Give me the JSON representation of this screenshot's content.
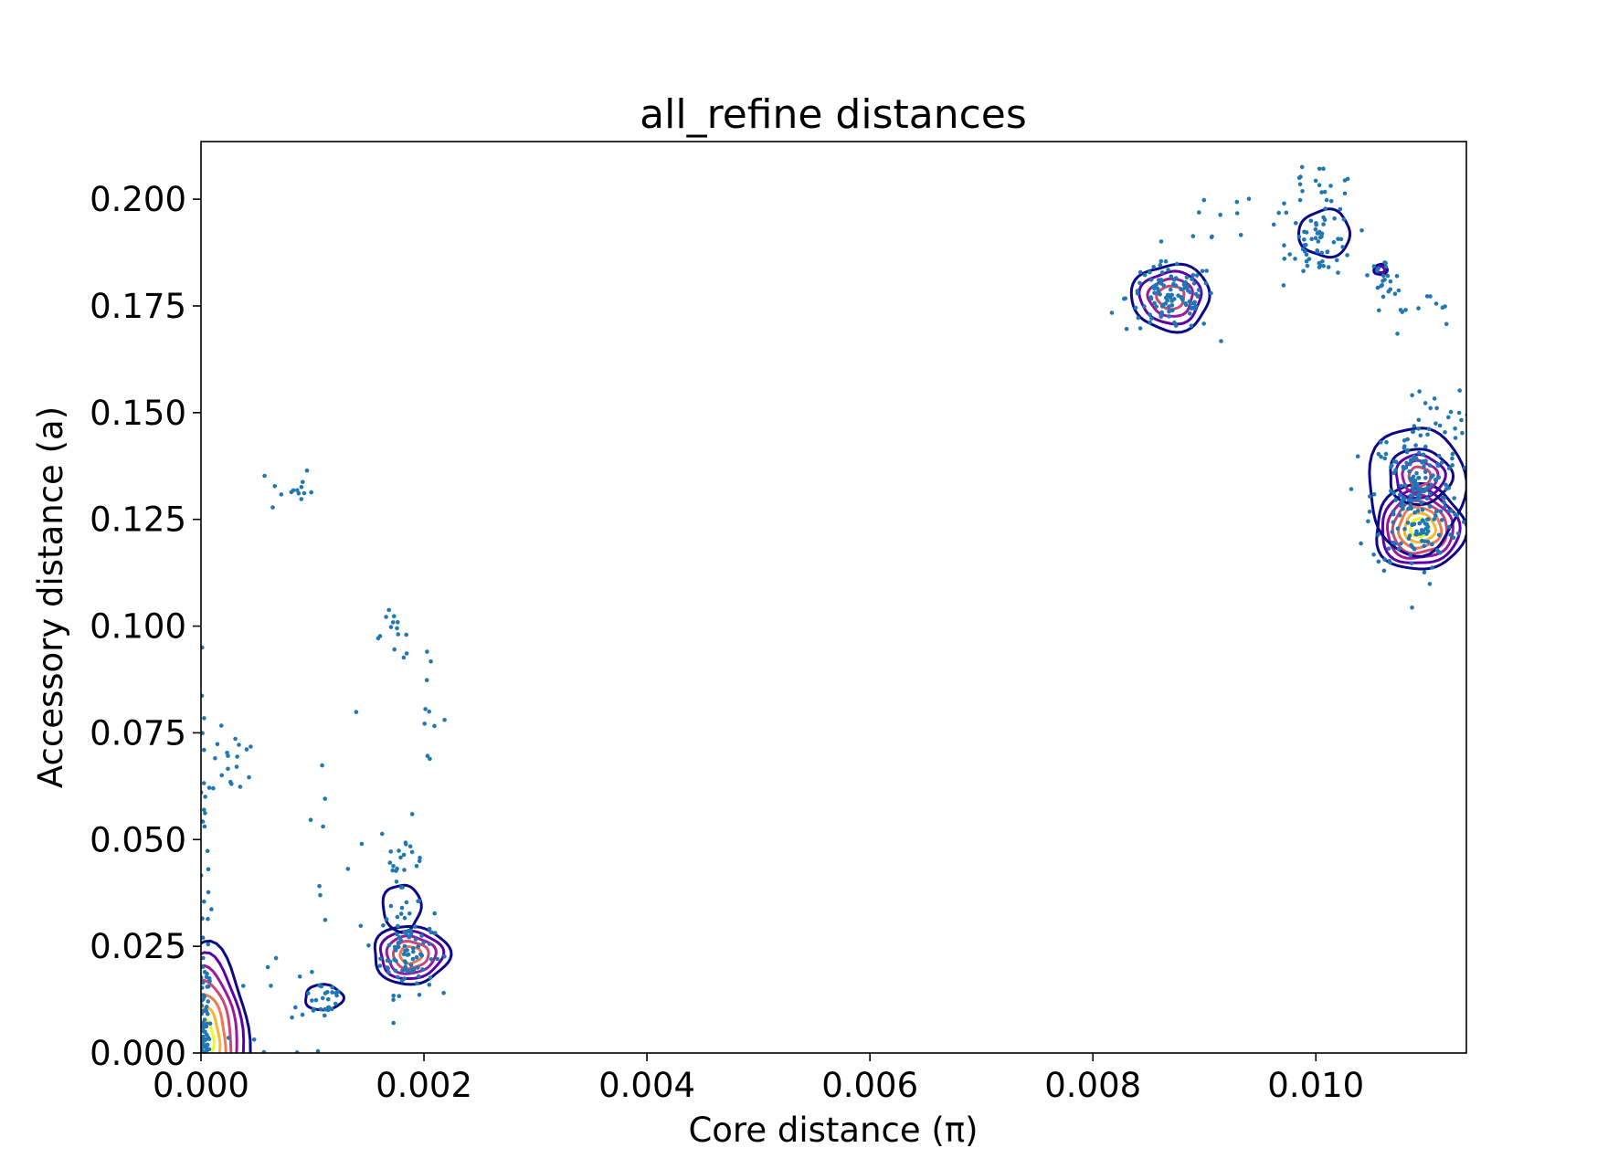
{
  "chart_data": {
    "type": "scatter",
    "title": "all_refine distances",
    "xlabel": "Core distance (π)",
    "ylabel": "Accessory distance (a)",
    "xlim": [
      0,
      0.01135
    ],
    "ylim": [
      0,
      0.2135
    ],
    "xticks": [
      "0.000",
      "0.002",
      "0.004",
      "0.006",
      "0.008",
      "0.010"
    ],
    "yticks": [
      "0.000",
      "0.025",
      "0.050",
      "0.075",
      "0.100",
      "0.125",
      "0.150",
      "0.175",
      "0.200"
    ],
    "grid": false,
    "legend": "none",
    "point_color": "#1f77b4",
    "contour_colors": [
      "#0d0887",
      "#5c01a6",
      "#9c179e",
      "#cc4778",
      "#ed7953",
      "#fdb42f",
      "#f0f921"
    ],
    "point_clusters": [
      {
        "cx": 3e-05,
        "cy": 0.004,
        "sx": 3e-05,
        "sy": 0.009,
        "n": 70
      },
      {
        "cx": 3e-05,
        "cy": 0.045,
        "sx": 3e-05,
        "sy": 0.02,
        "n": 25
      },
      {
        "cx": 0.0003,
        "cy": 0.068,
        "sx": 0.0001,
        "sy": 0.004,
        "n": 18
      },
      {
        "cx": 0.0008,
        "cy": 0.132,
        "sx": 0.0001,
        "sy": 0.003,
        "n": 14
      },
      {
        "cx": 0.0011,
        "cy": 0.013,
        "sx": 0.0001,
        "sy": 0.0025,
        "n": 22
      },
      {
        "cx": 0.0009,
        "cy": 0.012,
        "sx": 0.0003,
        "sy": 0.01,
        "n": 16
      },
      {
        "cx": 0.0011,
        "cy": 0.05,
        "sx": 0.0002,
        "sy": 0.02,
        "n": 10
      },
      {
        "cx": 0.00185,
        "cy": 0.024,
        "sx": 0.00012,
        "sy": 0.005,
        "n": 90
      },
      {
        "cx": 0.0018,
        "cy": 0.045,
        "sx": 0.0001,
        "sy": 0.005,
        "n": 25
      },
      {
        "cx": 0.00175,
        "cy": 0.098,
        "sx": 0.0001,
        "sy": 0.003,
        "n": 14
      },
      {
        "cx": 0.002,
        "cy": 0.08,
        "sx": 0.0001,
        "sy": 0.006,
        "n": 10
      },
      {
        "cx": 0.0087,
        "cy": 0.177,
        "sx": 0.0002,
        "sy": 0.004,
        "n": 110
      },
      {
        "cx": 0.0091,
        "cy": 0.193,
        "sx": 0.0002,
        "sy": 0.005,
        "n": 10
      },
      {
        "cx": 0.01005,
        "cy": 0.19,
        "sx": 0.00015,
        "sy": 0.004,
        "n": 60
      },
      {
        "cx": 0.01,
        "cy": 0.203,
        "sx": 0.0002,
        "sy": 0.003,
        "n": 20
      },
      {
        "cx": 0.0106,
        "cy": 0.182,
        "sx": 6e-05,
        "sy": 0.002,
        "n": 20
      },
      {
        "cx": 0.0109,
        "cy": 0.173,
        "sx": 0.0002,
        "sy": 0.004,
        "n": 14
      },
      {
        "cx": 0.0109,
        "cy": 0.13,
        "sx": 0.0002,
        "sy": 0.009,
        "n": 210
      },
      {
        "cx": 0.01105,
        "cy": 0.148,
        "sx": 0.00015,
        "sy": 0.004,
        "n": 20
      }
    ],
    "contour_groups": [
      {
        "cx": 3e-05,
        "cy": 0.003,
        "rx": 0.0004,
        "ry": 0.022,
        "levels": 7
      },
      {
        "cx": 0.0011,
        "cy": 0.013,
        "rx": 0.00017,
        "ry": 0.003,
        "levels": 1
      },
      {
        "cx": 0.00188,
        "cy": 0.023,
        "rx": 0.00034,
        "ry": 0.0068,
        "levels": 5
      },
      {
        "cx": 0.0018,
        "cy": 0.034,
        "rx": 0.00017,
        "ry": 0.0055,
        "levels": 1
      },
      {
        "cx": 0.0087,
        "cy": 0.177,
        "rx": 0.00035,
        "ry": 0.0078,
        "levels": 4
      },
      {
        "cx": 0.01008,
        "cy": 0.192,
        "rx": 0.00023,
        "ry": 0.0055,
        "levels": 1
      },
      {
        "cx": 0.01058,
        "cy": 0.1835,
        "rx": 6e-05,
        "ry": 0.0012,
        "levels": 2
      },
      {
        "cx": 0.01093,
        "cy": 0.123,
        "rx": 0.0004,
        "ry": 0.01,
        "levels": 7
      },
      {
        "cx": 0.01093,
        "cy": 0.135,
        "rx": 0.00028,
        "ry": 0.0065,
        "levels": 4
      },
      {
        "cx": 0.0109,
        "cy": 0.132,
        "rx": 0.00043,
        "ry": 0.015,
        "levels": 1
      }
    ]
  }
}
